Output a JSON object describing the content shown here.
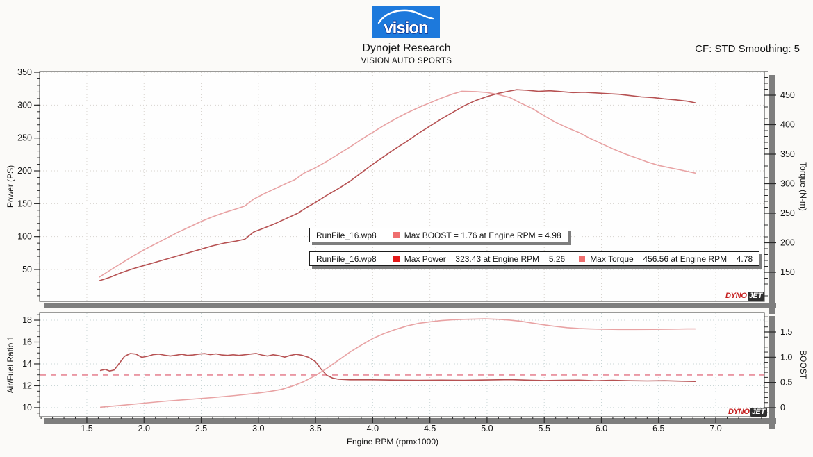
{
  "header": {
    "logo_text": "vision",
    "title": "Dynojet Research",
    "subtitle": "VISION AUTO SPORTS",
    "smoothing": "CF: STD Smoothing: 5"
  },
  "branding": {
    "dyno": "DYNO",
    "jet": "JET"
  },
  "colors": {
    "background": "#fbfaf8",
    "logo_blue": "#1d79dc",
    "logo_outline": "#0b2f8f",
    "power": "#b65152",
    "torque": "#e8a2a3",
    "afr": "#b65152",
    "boost": "#e8a2a3",
    "dash_line": "#ea98a4",
    "legend_red": "#e51a1a",
    "legend_salmon": "#ef6e6e",
    "band_gray": "#7e7e7e",
    "plot_border": "#5a5a5a",
    "grid_top": "#d8d4cf",
    "grid_bottom": "#c9d6d6"
  },
  "legends": [
    {
      "file": "RunFile_16.wp8",
      "entries": [
        {
          "color": "#ef6e6e",
          "text": "Max BOOST = 1.76 at Engine RPM = 4.98"
        }
      ]
    },
    {
      "file": "RunFile_16.wp8",
      "entries": [
        {
          "color": "#e51a1a",
          "text": "Max Power = 323.43 at Engine RPM = 5.26"
        },
        {
          "color": "#ef6e6e",
          "text": "Max Torque = 456.56 at Engine RPM = 4.78"
        }
      ]
    }
  ],
  "x_axis": {
    "label": "Engine RPM (rpmx1000)",
    "tick_values": [
      1.5,
      2.0,
      2.5,
      3.0,
      3.5,
      4.0,
      4.5,
      5.0,
      5.5,
      6.0,
      6.5,
      7.0
    ],
    "tick_labels": [
      "1.5",
      "2.0",
      "2.5",
      "3.0",
      "3.5",
      "4.0",
      "4.5",
      "5.0",
      "5.5",
      "6.0",
      "6.5",
      "7.0"
    ],
    "minor_step": 0.1,
    "lo": 1.087,
    "hi": 7.425
  },
  "chart_data": [
    {
      "type": "line",
      "axes": {
        "left": {
          "label": "Power (PS)",
          "tick_values": [
            50,
            100,
            150,
            200,
            250,
            300,
            350
          ],
          "tick_labels": [
            "50",
            "100",
            "150",
            "200",
            "250",
            "300",
            "350"
          ],
          "minor_step": 10,
          "lo": 1.41,
          "hi": 351.06
        },
        "right": {
          "label": "Torque (N-m)",
          "tick_values": [
            150,
            200,
            250,
            300,
            350,
            400,
            450
          ],
          "tick_labels": [
            "150",
            "200",
            "250",
            "300",
            "350",
            "400",
            "450"
          ],
          "minor_step": 10,
          "lo": 100.6,
          "hi": 490
        }
      },
      "series": [
        {
          "name": "power",
          "axis": "left",
          "color": "#b65152",
          "max_note": "Max Power = 323.43 at Engine RPM = 5.26",
          "points": [
            [
              1.61,
              33
            ],
            [
              1.7,
              38
            ],
            [
              1.8,
              45
            ],
            [
              1.9,
              51
            ],
            [
              2.0,
              56
            ],
            [
              2.1,
              61
            ],
            [
              2.2,
              66
            ],
            [
              2.3,
              71
            ],
            [
              2.4,
              76
            ],
            [
              2.5,
              81
            ],
            [
              2.6,
              86
            ],
            [
              2.7,
              90
            ],
            [
              2.8,
              93
            ],
            [
              2.88,
              96
            ],
            [
              2.96,
              107
            ],
            [
              3.05,
              113
            ],
            [
              3.15,
              120
            ],
            [
              3.25,
              128
            ],
            [
              3.35,
              136
            ],
            [
              3.42,
              144
            ],
            [
              3.5,
              152
            ],
            [
              3.6,
              163
            ],
            [
              3.7,
              173
            ],
            [
              3.8,
              184
            ],
            [
              3.9,
              197
            ],
            [
              4.0,
              210
            ],
            [
              4.1,
              222
            ],
            [
              4.2,
              234
            ],
            [
              4.3,
              245
            ],
            [
              4.4,
              257
            ],
            [
              4.5,
              268
            ],
            [
              4.6,
              279
            ],
            [
              4.7,
              289
            ],
            [
              4.8,
              299
            ],
            [
              4.9,
              307
            ],
            [
              5.0,
              313
            ],
            [
              5.1,
              318
            ],
            [
              5.2,
              321.5
            ],
            [
              5.26,
              323.4
            ],
            [
              5.35,
              322.5
            ],
            [
              5.45,
              321
            ],
            [
              5.55,
              321.8
            ],
            [
              5.65,
              320.5
            ],
            [
              5.75,
              319
            ],
            [
              5.85,
              319.6
            ],
            [
              5.95,
              318.5
            ],
            [
              6.05,
              317.5
            ],
            [
              6.15,
              316.5
            ],
            [
              6.25,
              314.5
            ],
            [
              6.35,
              312.5
            ],
            [
              6.45,
              311.5
            ],
            [
              6.55,
              309.5
            ],
            [
              6.65,
              308
            ],
            [
              6.75,
              306
            ],
            [
              6.82,
              303.5
            ]
          ]
        },
        {
          "name": "torque",
          "axis": "right",
          "color": "#e8a2a3",
          "max_note": "Max Torque = 456.56 at Engine RPM = 4.78",
          "points": [
            [
              1.61,
              142
            ],
            [
              1.7,
              153
            ],
            [
              1.8,
              165
            ],
            [
              1.9,
              177
            ],
            [
              2.0,
              188
            ],
            [
              2.1,
              198
            ],
            [
              2.2,
              208
            ],
            [
              2.3,
              218
            ],
            [
              2.4,
              227
            ],
            [
              2.5,
              236
            ],
            [
              2.6,
              244
            ],
            [
              2.7,
              251
            ],
            [
              2.8,
              257
            ],
            [
              2.88,
              262
            ],
            [
              2.96,
              274
            ],
            [
              3.05,
              283
            ],
            [
              3.15,
              292
            ],
            [
              3.25,
              301
            ],
            [
              3.32,
              307
            ],
            [
              3.4,
              318
            ],
            [
              3.5,
              327
            ],
            [
              3.6,
              338
            ],
            [
              3.7,
              350
            ],
            [
              3.8,
              362
            ],
            [
              3.9,
              375
            ],
            [
              4.0,
              387
            ],
            [
              4.1,
              399
            ],
            [
              4.2,
              410
            ],
            [
              4.3,
              420
            ],
            [
              4.4,
              429
            ],
            [
              4.5,
              437
            ],
            [
              4.6,
              445
            ],
            [
              4.7,
              452
            ],
            [
              4.78,
              456.6
            ],
            [
              4.9,
              456
            ],
            [
              5.0,
              454.5
            ],
            [
              5.1,
              451
            ],
            [
              5.2,
              446
            ],
            [
              5.3,
              436
            ],
            [
              5.4,
              427
            ],
            [
              5.5,
              415
            ],
            [
              5.6,
              404
            ],
            [
              5.7,
              395
            ],
            [
              5.8,
              387
            ],
            [
              5.9,
              377
            ],
            [
              6.0,
              368
            ],
            [
              6.1,
              359
            ],
            [
              6.2,
              351
            ],
            [
              6.3,
              344
            ],
            [
              6.4,
              337
            ],
            [
              6.5,
              331
            ],
            [
              6.6,
              327
            ],
            [
              6.7,
              323
            ],
            [
              6.82,
              318
            ]
          ]
        }
      ]
    },
    {
      "type": "line",
      "axes": {
        "left": {
          "label": "Air/Fuel Ratio 1",
          "tick_values": [
            10,
            12,
            14,
            16,
            18
          ],
          "tick_labels": [
            "10",
            "12",
            "14",
            "16",
            "18"
          ],
          "minor_step": 0.5,
          "lo": 9.17,
          "hi": 18.7
        },
        "right": {
          "label": "BOOST",
          "tick_values": [
            0,
            0.5,
            1.0,
            1.5
          ],
          "tick_labels": [
            "0",
            "0.5",
            "1.0",
            "1.5"
          ],
          "minor_step": 0.1,
          "lo": -0.179,
          "hi": 1.885
        }
      },
      "reference_line": {
        "axis": "left",
        "value": 13,
        "color": "#ea98a4"
      },
      "series": [
        {
          "name": "afr",
          "axis": "left",
          "color": "#b65152",
          "points": [
            [
              1.62,
              13.4
            ],
            [
              1.66,
              13.5
            ],
            [
              1.7,
              13.35
            ],
            [
              1.74,
              13.45
            ],
            [
              1.78,
              14.0
            ],
            [
              1.83,
              14.7
            ],
            [
              1.88,
              14.95
            ],
            [
              1.93,
              14.9
            ],
            [
              1.98,
              14.6
            ],
            [
              2.03,
              14.7
            ],
            [
              2.08,
              14.85
            ],
            [
              2.13,
              14.9
            ],
            [
              2.18,
              14.8
            ],
            [
              2.23,
              14.72
            ],
            [
              2.28,
              14.8
            ],
            [
              2.33,
              14.88
            ],
            [
              2.38,
              14.78
            ],
            [
              2.43,
              14.82
            ],
            [
              2.48,
              14.9
            ],
            [
              2.53,
              14.94
            ],
            [
              2.58,
              14.85
            ],
            [
              2.63,
              14.92
            ],
            [
              2.68,
              14.82
            ],
            [
              2.73,
              14.78
            ],
            [
              2.78,
              14.84
            ],
            [
              2.83,
              14.78
            ],
            [
              2.88,
              14.84
            ],
            [
              2.93,
              14.9
            ],
            [
              2.98,
              14.96
            ],
            [
              3.03,
              14.82
            ],
            [
              3.08,
              14.72
            ],
            [
              3.13,
              14.84
            ],
            [
              3.18,
              14.76
            ],
            [
              3.23,
              14.62
            ],
            [
              3.28,
              14.78
            ],
            [
              3.33,
              14.88
            ],
            [
              3.38,
              14.8
            ],
            [
              3.44,
              14.6
            ],
            [
              3.5,
              14.2
            ],
            [
              3.55,
              13.5
            ],
            [
              3.6,
              12.95
            ],
            [
              3.65,
              12.7
            ],
            [
              3.7,
              12.6
            ],
            [
              3.8,
              12.55
            ],
            [
              4.0,
              12.55
            ],
            [
              4.2,
              12.52
            ],
            [
              4.4,
              12.5
            ],
            [
              4.6,
              12.52
            ],
            [
              4.8,
              12.5
            ],
            [
              5.0,
              12.53
            ],
            [
              5.2,
              12.56
            ],
            [
              5.35,
              12.52
            ],
            [
              5.5,
              12.48
            ],
            [
              5.65,
              12.5
            ],
            [
              5.8,
              12.52
            ],
            [
              5.95,
              12.46
            ],
            [
              6.1,
              12.5
            ],
            [
              6.25,
              12.46
            ],
            [
              6.4,
              12.44
            ],
            [
              6.55,
              12.46
            ],
            [
              6.7,
              12.42
            ],
            [
              6.82,
              12.4
            ]
          ]
        },
        {
          "name": "boost",
          "axis": "right",
          "color": "#e8a2a3",
          "max_note": "Max BOOST = 1.76 at Engine RPM = 4.98",
          "points": [
            [
              1.62,
              0.01
            ],
            [
              1.8,
              0.045
            ],
            [
              2.0,
              0.09
            ],
            [
              2.2,
              0.13
            ],
            [
              2.4,
              0.165
            ],
            [
              2.6,
              0.2
            ],
            [
              2.8,
              0.24
            ],
            [
              3.0,
              0.29
            ],
            [
              3.1,
              0.32
            ],
            [
              3.2,
              0.36
            ],
            [
              3.3,
              0.43
            ],
            [
              3.4,
              0.52
            ],
            [
              3.5,
              0.64
            ],
            [
              3.6,
              0.78
            ],
            [
              3.7,
              0.94
            ],
            [
              3.8,
              1.1
            ],
            [
              3.9,
              1.24
            ],
            [
              4.0,
              1.37
            ],
            [
              4.1,
              1.47
            ],
            [
              4.2,
              1.55
            ],
            [
              4.3,
              1.62
            ],
            [
              4.4,
              1.67
            ],
            [
              4.5,
              1.7
            ],
            [
              4.6,
              1.725
            ],
            [
              4.7,
              1.74
            ],
            [
              4.8,
              1.75
            ],
            [
              4.9,
              1.755
            ],
            [
              4.98,
              1.76
            ],
            [
              5.1,
              1.75
            ],
            [
              5.2,
              1.735
            ],
            [
              5.3,
              1.71
            ],
            [
              5.4,
              1.675
            ],
            [
              5.5,
              1.64
            ],
            [
              5.6,
              1.61
            ],
            [
              5.7,
              1.585
            ],
            [
              5.8,
              1.57
            ],
            [
              5.9,
              1.56
            ],
            [
              6.0,
              1.555
            ],
            [
              6.15,
              1.55
            ],
            [
              6.3,
              1.55
            ],
            [
              6.45,
              1.552
            ],
            [
              6.6,
              1.555
            ],
            [
              6.75,
              1.56
            ],
            [
              6.82,
              1.56
            ]
          ]
        }
      ]
    }
  ]
}
